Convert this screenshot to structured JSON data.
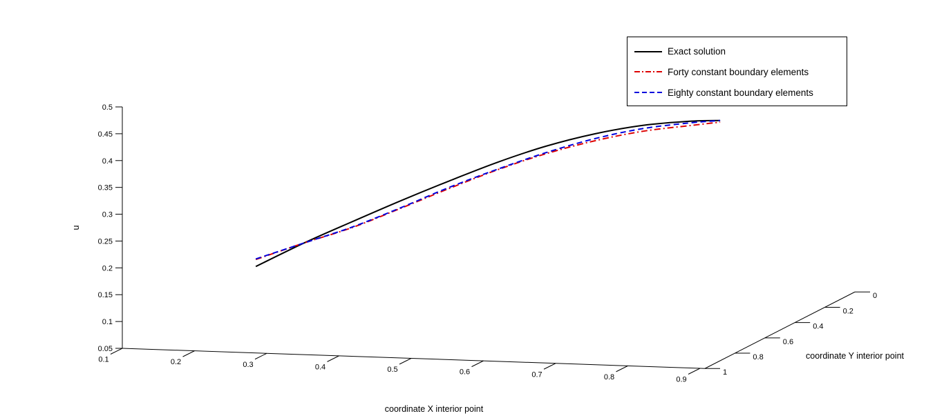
{
  "figure": {
    "background": "#ffffff"
  },
  "chart_data": {
    "type": "line",
    "projection": "3d",
    "title": "",
    "xlabel": "coordinate X interior point",
    "ylabel": "coordinate Y interior point",
    "zlabel": "u",
    "xlim": [
      0.1,
      0.9067
    ],
    "ylim": [
      0,
      1
    ],
    "zlim": [
      0.05,
      0.5
    ],
    "x_ticks": [
      0.1,
      0.2,
      0.3,
      0.4,
      0.5,
      0.6,
      0.7,
      0.8,
      0.9
    ],
    "y_ticks": [
      0,
      0.2,
      0.4,
      0.6,
      0.8,
      1
    ],
    "z_ticks": [
      0.05,
      0.1,
      0.15,
      0.2,
      0.25,
      0.3,
      0.35,
      0.4,
      0.45,
      0.5
    ],
    "grid": false,
    "legend_position": "top-right",
    "y_interior_fixed": 0.5,
    "x": [
      0.181,
      0.248,
      0.315,
      0.382,
      0.449,
      0.516,
      0.583,
      0.65,
      0.717,
      0.784,
      0.824
    ],
    "series": [
      {
        "name": "Exact solution",
        "color": "#000000",
        "style": "solid",
        "u": [
          0.135,
          0.182,
          0.225,
          0.267,
          0.307,
          0.345,
          0.378,
          0.404,
          0.423,
          0.434,
          0.437
        ]
      },
      {
        "name": "Forty constant boundary elements",
        "color": "#dd0000",
        "style": "dash-dot",
        "u": [
          0.148,
          0.182,
          0.214,
          0.253,
          0.293,
          0.331,
          0.364,
          0.391,
          0.412,
          0.426,
          0.434
        ]
      },
      {
        "name": "Eighty constant boundary elements",
        "color": "#0000dd",
        "style": "dashed",
        "u": [
          0.149,
          0.182,
          0.215,
          0.254,
          0.295,
          0.332,
          0.366,
          0.395,
          0.417,
          0.431,
          0.437
        ]
      }
    ]
  }
}
